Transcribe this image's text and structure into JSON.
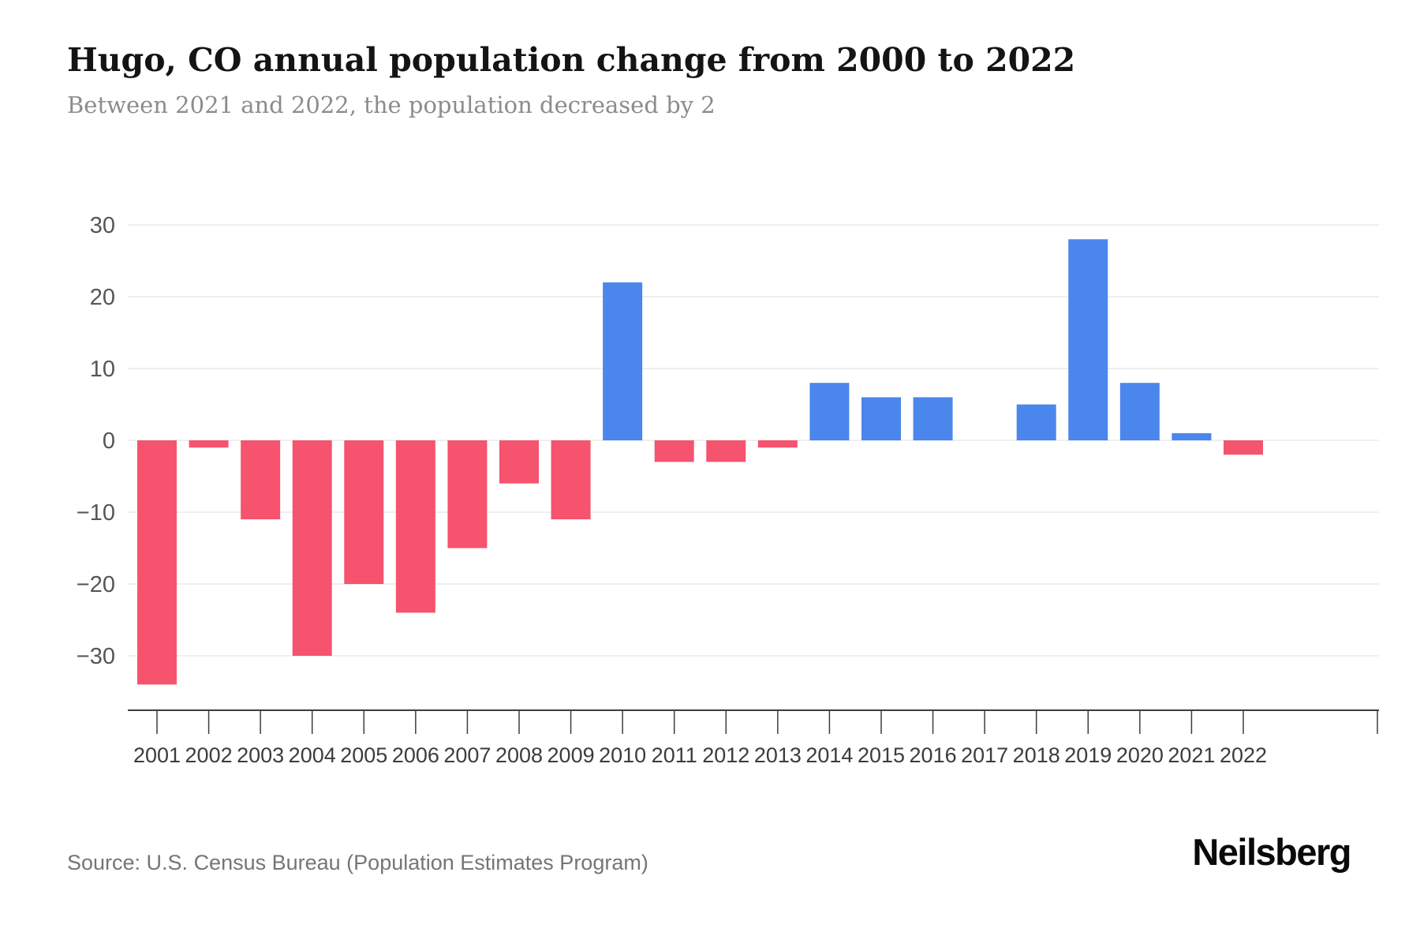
{
  "header": {
    "title": "Hugo, CO annual population change from 2000 to 2022",
    "subtitle": "Between 2021 and 2022, the population decreased by 2"
  },
  "chart_data": {
    "type": "bar",
    "title": "Hugo, CO annual population change from 2000 to 2022",
    "categories": [
      "2001",
      "2002",
      "2003",
      "2004",
      "2005",
      "2006",
      "2007",
      "2008",
      "2009",
      "2010",
      "2011",
      "2012",
      "2013",
      "2014",
      "2015",
      "2016",
      "2017",
      "2018",
      "2019",
      "2020",
      "2021",
      "2022"
    ],
    "values": [
      -34,
      -1,
      -11,
      -30,
      -20,
      -24,
      -15,
      -6,
      -11,
      22,
      -3,
      -3,
      -1,
      8,
      6,
      6,
      0,
      5,
      28,
      8,
      1,
      -2
    ],
    "xlabel": "",
    "ylabel": "",
    "yticks": [
      30,
      20,
      10,
      0,
      -10,
      -20,
      -30
    ],
    "ylim": [
      -37.5,
      33
    ],
    "grid": "horizontal",
    "legend": "none",
    "colors": {
      "positive": "#4A86EC",
      "negative": "#F6536E",
      "gridline": "#efefef",
      "axis_line": "#3d3d3d",
      "tick_label": "#565656",
      "year_label": "#3c3c3c"
    }
  },
  "footer": {
    "source": "Source: U.S. Census Bureau (Population Estimates Program)",
    "brand": "Neilsberg"
  }
}
